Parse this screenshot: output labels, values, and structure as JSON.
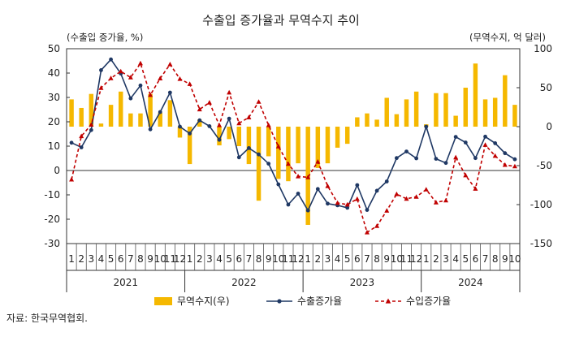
{
  "chart_data": {
    "type": "bar+line",
    "title": "수출입 증가율과 무역수지 추이",
    "left_axis_label": "(수출입 증가율, %)",
    "right_axis_label": "(무역수지, 억 달러)",
    "left_ylim": [
      -30,
      50
    ],
    "left_ticks": [
      -30,
      -20,
      -10,
      0,
      10,
      20,
      30,
      40,
      50
    ],
    "right_ylim": [
      -150,
      100
    ],
    "right_ticks": [
      -150,
      -100,
      -50,
      0,
      50,
      100
    ],
    "months": [
      "1",
      "2",
      "3",
      "4",
      "5",
      "6",
      "7",
      "8",
      "9",
      "10",
      "11",
      "12",
      "1",
      "2",
      "3",
      "4",
      "5",
      "6",
      "7",
      "8",
      "9",
      "10",
      "11",
      "12",
      "1",
      "2",
      "3",
      "4",
      "5",
      "6",
      "7",
      "8",
      "9",
      "10",
      "11",
      "12",
      "1",
      "2",
      "3",
      "4",
      "5",
      "6",
      "7",
      "8",
      "9",
      "10"
    ],
    "years": [
      {
        "label": "2021",
        "start": 0,
        "count": 12
      },
      {
        "label": "2022",
        "start": 12,
        "count": 12
      },
      {
        "label": "2023",
        "start": 24,
        "count": 12
      },
      {
        "label": "2024",
        "start": 36,
        "count": 10
      }
    ],
    "series": [
      {
        "name": "무역수지(우)",
        "axis": "right",
        "kind": "bar",
        "color": "#F5B800",
        "values": [
          35,
          24,
          42,
          4,
          28,
          45,
          17,
          17,
          42,
          18,
          34,
          -14,
          -48,
          9,
          1,
          -24,
          -16,
          -25,
          -48,
          -95,
          -38,
          -67,
          -70,
          -47,
          -126,
          -53,
          -47,
          -27,
          -22,
          12,
          17,
          9,
          37,
          16,
          35,
          45,
          3,
          43,
          43,
          14,
          50,
          81,
          35,
          37,
          66,
          28
        ]
      },
      {
        "name": "수출증가율",
        "axis": "left",
        "kind": "line",
        "color": "#1F3864",
        "values": [
          11.4,
          9.5,
          16.6,
          41.2,
          45.6,
          39.8,
          29.6,
          34.9,
          16.9,
          24.0,
          32.0,
          18.0,
          15.2,
          20.6,
          18.2,
          12.6,
          21.3,
          5.4,
          9.2,
          6.6,
          2.8,
          -5.7,
          -14.0,
          -9.5,
          -16.4,
          -7.6,
          -13.6,
          -14.3,
          -15.3,
          -6.0,
          -16.2,
          -8.3,
          -4.5,
          5.1,
          7.8,
          5.0,
          18.0,
          4.8,
          3.1,
          13.8,
          11.5,
          5.1,
          13.9,
          11.2,
          7.1,
          4.6
        ]
      },
      {
        "name": "수입증가율",
        "axis": "left",
        "kind": "line",
        "color": "#C00000",
        "values": [
          -3.7,
          14.1,
          18.8,
          33.9,
          37.9,
          40.7,
          38.2,
          44.0,
          31.0,
          37.8,
          43.6,
          37.6,
          35.5,
          25.1,
          27.9,
          18.6,
          32.0,
          19.4,
          21.8,
          28.2,
          18.6,
          9.9,
          2.7,
          -2.4,
          -2.8,
          3.6,
          -6.4,
          -13.3,
          -14.0,
          -11.7,
          -25.4,
          -22.8,
          -16.5,
          -9.7,
          -11.6,
          -10.8,
          -7.8,
          -13.1,
          -12.3,
          5.4,
          -2.0,
          -7.5,
          10.5,
          6.0,
          2.3,
          1.7
        ]
      }
    ],
    "source": "자료: 한국무역협회."
  }
}
